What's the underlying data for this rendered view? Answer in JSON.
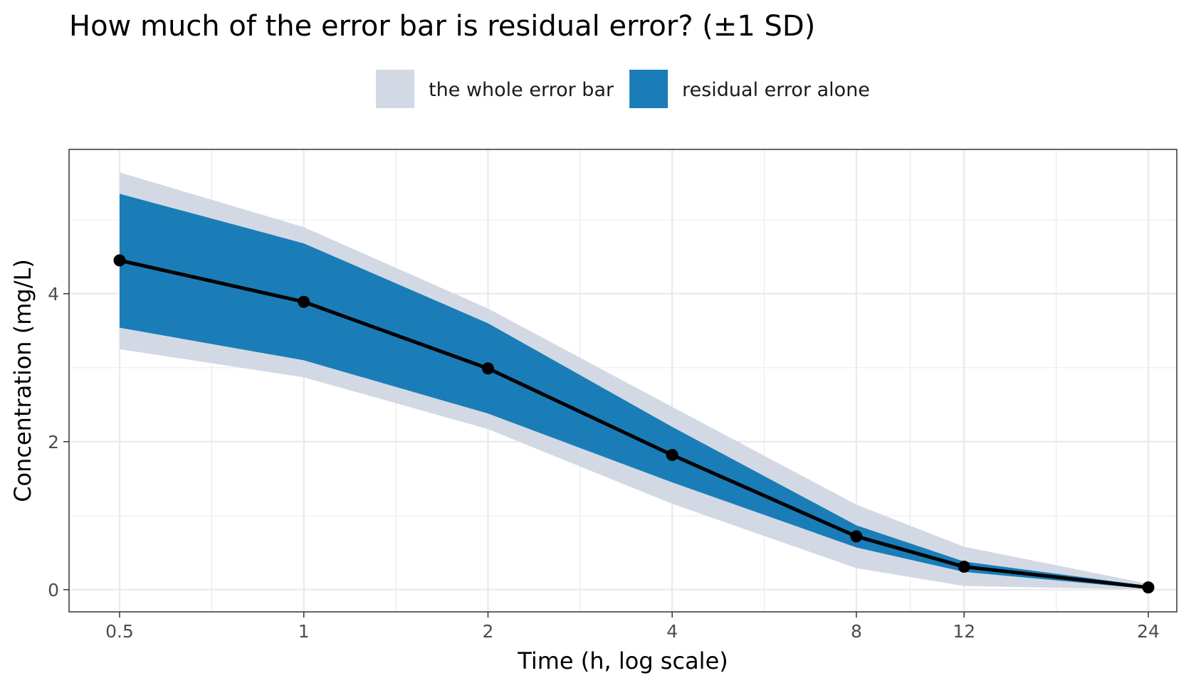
{
  "chart_data": {
    "type": "line",
    "title": "How much of the error bar is residual error? (±1 SD)",
    "xlabel": "Time (h, log scale)",
    "ylabel": "Concentration (mg/L)",
    "x_scale": "log",
    "x": [
      0.5,
      1,
      2,
      4,
      8,
      12,
      24
    ],
    "x_tick_labels": [
      "0.5",
      "1",
      "2",
      "4",
      "8",
      "12",
      "24"
    ],
    "y_ticks": [
      0,
      2,
      4
    ],
    "y_tick_labels": [
      "0",
      "2",
      "4"
    ],
    "ylim": [
      -0.3,
      5.95
    ],
    "grid": true,
    "legend_position": "top",
    "series": [
      {
        "name": "the whole error bar",
        "kind": "band",
        "color": "#d2d9e5",
        "lower": [
          3.25,
          2.87,
          2.17,
          1.16,
          0.29,
          0.05,
          0.0
        ],
        "upper": [
          5.64,
          4.9,
          3.8,
          2.47,
          1.15,
          0.58,
          0.08
        ]
      },
      {
        "name": "residual error alone",
        "kind": "band",
        "color": "#1a7db7",
        "lower": [
          3.54,
          3.1,
          2.38,
          1.45,
          0.57,
          0.24,
          0.01
        ],
        "upper": [
          5.35,
          4.68,
          3.6,
          2.2,
          0.87,
          0.38,
          0.05
        ]
      },
      {
        "kind": "line",
        "color": "#000000",
        "values": [
          4.45,
          3.89,
          2.99,
          1.82,
          0.72,
          0.31,
          0.03
        ]
      }
    ]
  }
}
